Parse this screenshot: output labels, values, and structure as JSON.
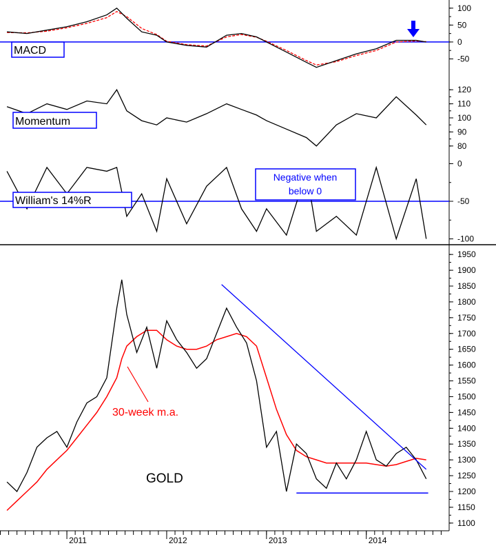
{
  "chart_data": [
    {
      "type": "line",
      "panel": "MACD",
      "label": "MACD",
      "y_ticks": [
        "100",
        "50",
        "0",
        "-50"
      ],
      "ylim": [
        -100,
        120
      ],
      "reference_line": 0,
      "signal_marker": "arrow-down",
      "colors": {
        "macd": "#000000",
        "signal": "#ff0000",
        "zero": "#0000ff",
        "arrow": "#0000ff"
      },
      "x": [
        2010.4,
        2010.6,
        2010.8,
        2011.0,
        2011.2,
        2011.4,
        2011.5,
        2011.6,
        2011.75,
        2011.9,
        2012.0,
        2012.2,
        2012.4,
        2012.6,
        2012.75,
        2012.9,
        2013.0,
        2013.2,
        2013.4,
        2013.5,
        2013.7,
        2013.9,
        2014.1,
        2014.3,
        2014.5,
        2014.6
      ],
      "series": [
        {
          "values": [
            30,
            25,
            35,
            45,
            60,
            80,
            100,
            70,
            30,
            20,
            0,
            -10,
            -15,
            20,
            25,
            15,
            0,
            -30,
            -60,
            -75,
            -55,
            -35,
            -20,
            5,
            5,
            0
          ]
        },
        {
          "values": [
            28,
            27,
            32,
            42,
            55,
            72,
            90,
            75,
            40,
            22,
            2,
            -8,
            -12,
            15,
            22,
            14,
            2,
            -25,
            -55,
            -68,
            -58,
            -40,
            -25,
            0,
            3,
            1
          ]
        }
      ]
    },
    {
      "type": "line",
      "panel": "Momentum",
      "label": "Momentum",
      "y_ticks": [
        "120",
        "110",
        "100",
        "90",
        "80"
      ],
      "ylim": [
        75,
        125
      ],
      "x": [
        2010.4,
        2010.6,
        2010.8,
        2011.0,
        2011.2,
        2011.4,
        2011.5,
        2011.6,
        2011.75,
        2011.9,
        2012.0,
        2012.2,
        2012.4,
        2012.6,
        2012.75,
        2012.9,
        2013.0,
        2013.2,
        2013.4,
        2013.5,
        2013.7,
        2013.9,
        2014.1,
        2014.3,
        2014.5,
        2014.6
      ],
      "series": [
        {
          "values": [
            108,
            103,
            110,
            106,
            112,
            110,
            120,
            105,
            98,
            95,
            100,
            97,
            103,
            110,
            106,
            102,
            98,
            92,
            86,
            80,
            95,
            103,
            100,
            115,
            102,
            95
          ]
        }
      ]
    },
    {
      "type": "line",
      "panel": "William's 14%R",
      "label": "William's 14%R",
      "annotation": [
        "Negative when",
        "below 0"
      ],
      "y_ticks": [
        "0",
        "-50",
        "-100"
      ],
      "ylim": [
        -105,
        5
      ],
      "reference_line": -50,
      "x": [
        2010.4,
        2010.6,
        2010.8,
        2011.0,
        2011.2,
        2011.4,
        2011.5,
        2011.6,
        2011.75,
        2011.9,
        2012.0,
        2012.2,
        2012.4,
        2012.6,
        2012.75,
        2012.9,
        2013.0,
        2013.2,
        2013.4,
        2013.5,
        2013.7,
        2013.9,
        2014.1,
        2014.3,
        2014.5,
        2014.6
      ],
      "series": [
        {
          "values": [
            -10,
            -60,
            -5,
            -40,
            -5,
            -10,
            -5,
            -70,
            -40,
            -90,
            -20,
            -80,
            -30,
            -5,
            -60,
            -90,
            -60,
            -95,
            -10,
            -90,
            -70,
            -95,
            -5,
            -100,
            -20,
            -100
          ]
        }
      ]
    },
    {
      "type": "line",
      "panel": "GOLD",
      "label": "GOLD",
      "ma_label": "30-week m.a.",
      "y_ticks": [
        "1950",
        "1900",
        "1850",
        "1800",
        "1750",
        "1700",
        "1650",
        "1600",
        "1550",
        "1500",
        "1450",
        "1400",
        "1350",
        "1300",
        "1250",
        "1200",
        "1150",
        "1100"
      ],
      "ylim": [
        1080,
        1970
      ],
      "x_ticks": [
        "2011",
        "2012",
        "2013",
        "2014"
      ],
      "xlim": [
        2010.33,
        2014.83
      ],
      "colors": {
        "price": "#000000",
        "ma": "#ff0000",
        "trendline": "#0000ff",
        "support": "#0000ff"
      },
      "x": [
        2010.4,
        2010.5,
        2010.6,
        2010.7,
        2010.8,
        2010.9,
        2011.0,
        2011.1,
        2011.2,
        2011.3,
        2011.4,
        2011.5,
        2011.55,
        2011.6,
        2011.7,
        2011.8,
        2011.9,
        2012.0,
        2012.1,
        2012.2,
        2012.3,
        2012.4,
        2012.5,
        2012.6,
        2012.7,
        2012.8,
        2012.9,
        2013.0,
        2013.1,
        2013.2,
        2013.3,
        2013.4,
        2013.5,
        2013.6,
        2013.7,
        2013.8,
        2013.9,
        2014.0,
        2014.1,
        2014.2,
        2014.3,
        2014.4,
        2014.5,
        2014.6
      ],
      "series": [
        {
          "name": "Gold price",
          "values": [
            1230,
            1200,
            1260,
            1340,
            1370,
            1390,
            1340,
            1420,
            1480,
            1500,
            1560,
            1780,
            1870,
            1760,
            1640,
            1720,
            1590,
            1740,
            1680,
            1640,
            1590,
            1620,
            1700,
            1780,
            1720,
            1670,
            1550,
            1340,
            1390,
            1200,
            1350,
            1320,
            1240,
            1210,
            1290,
            1240,
            1300,
            1390,
            1300,
            1280,
            1320,
            1340,
            1300,
            1240
          ]
        },
        {
          "name": "30-week m.a.",
          "values": [
            1140,
            1170,
            1200,
            1230,
            1270,
            1300,
            1330,
            1370,
            1410,
            1450,
            1500,
            1560,
            1620,
            1660,
            1690,
            1710,
            1710,
            1680,
            1660,
            1650,
            1650,
            1660,
            1680,
            1690,
            1700,
            1690,
            1660,
            1560,
            1460,
            1380,
            1330,
            1310,
            1300,
            1290,
            1290,
            1290,
            1290,
            1290,
            1285,
            1280,
            1285,
            1295,
            1305,
            1300
          ]
        }
      ],
      "trendline": {
        "x": [
          2012.55,
          2014.6
        ],
        "y": [
          1855,
          1270
        ]
      },
      "support_line": {
        "x": [
          2013.3,
          2014.62
        ],
        "y": [
          1195,
          1195
        ]
      }
    }
  ]
}
